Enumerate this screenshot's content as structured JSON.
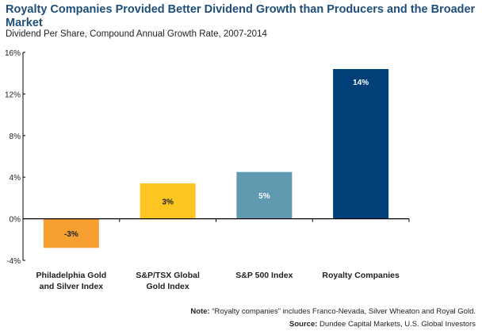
{
  "chart_data": {
    "type": "bar",
    "title": "Royalty Companies Provided Better Dividend Growth than Producers and the Broader Market",
    "subtitle": "Dividend Per Share, Compound Annual Growth Rate, 2007-2014",
    "categories": [
      [
        "Philadelphia Gold",
        "and Silver Index"
      ],
      [
        "S&P/TSX Global",
        "Gold Index"
      ],
      [
        "S&P 500 Index"
      ],
      [
        "Royalty Companies"
      ]
    ],
    "values": [
      -2.8,
      3.4,
      4.5,
      14.4
    ],
    "data_labels": [
      "-3%",
      "3%",
      "5%",
      "14%"
    ],
    "colors": [
      "#f5a031",
      "#fcc522",
      "#5f9ab0",
      "#003f78"
    ],
    "label_colors": [
      "#222222",
      "#222222",
      "#ffffff",
      "#ffffff"
    ],
    "ylim": [
      -4,
      16
    ],
    "yticks": [
      -4,
      0,
      4,
      8,
      12,
      16
    ],
    "ytick_labels": [
      "-4%",
      "0%",
      "4%",
      "8%",
      "12%",
      "16%"
    ],
    "grid": false,
    "xlabel": "",
    "ylabel": ""
  },
  "footer": {
    "note_label": "Note:",
    "note_text": " “Royalty companies” includes Franco-Nevada, Silver Wheaton and Royal Gold.",
    "source_label": "Source:",
    "source_text": " Dundee Capital Markets, U.S. Global Investors"
  }
}
